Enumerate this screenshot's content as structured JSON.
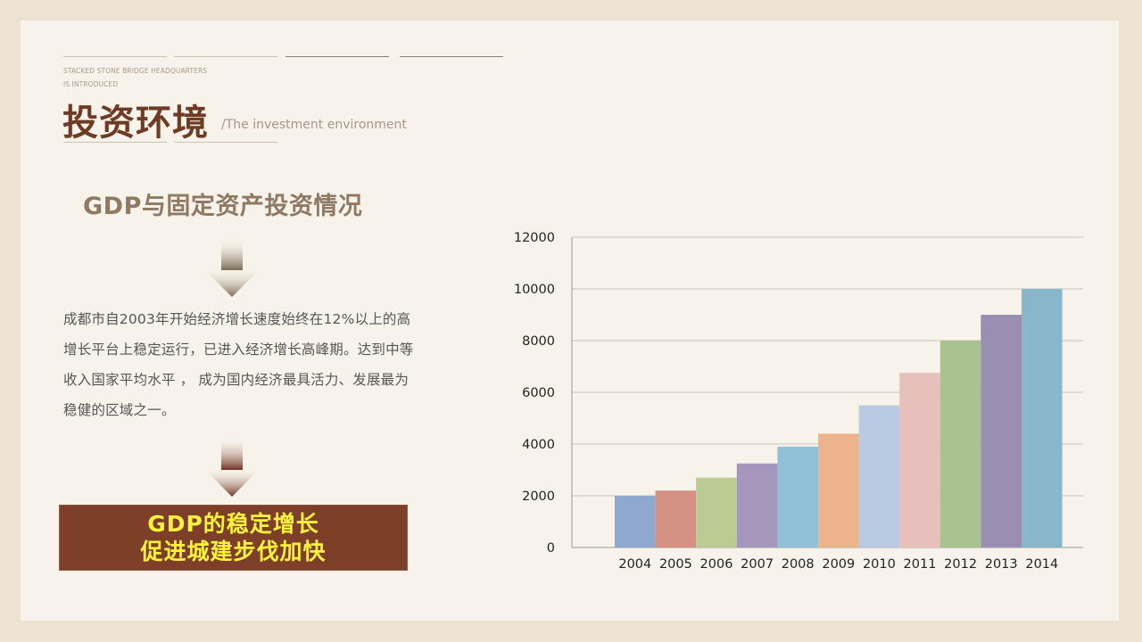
{
  "header": {
    "subtitle_en_line1": "STACKED STONE BRIDGE HEADQUARTERS",
    "subtitle_en_line2": "IS INTRODUCED",
    "title_cn": "投资环境",
    "title_en": "/The investment environment"
  },
  "section": {
    "heading": "GDP与固定资产投资情况",
    "paragraph": "成都市自2003年开始经济增长速度始终在12%以上的高增长平台上稳定运行，已进入经济增长高峰期。达到中等收入国家平均水平 ， 成为国内经济最具活力、发展最为稳健的区域之一。",
    "highlight_line1": "GDP的稳定增长",
    "highlight_line2": "促进城建步伐加快"
  },
  "colors": {
    "title": "#6e3b24",
    "highlight_bg": "#7e3f29",
    "highlight_text": "#fff23a"
  },
  "chart_data": {
    "type": "bar",
    "categories": [
      "2004",
      "2005",
      "2006",
      "2007",
      "2008",
      "2009",
      "2010",
      "2011",
      "2012",
      "2013",
      "2014"
    ],
    "values": [
      2000,
      2200,
      2700,
      3250,
      3900,
      4400,
      5500,
      6750,
      8000,
      9000,
      10000
    ],
    "colors": [
      "#8fa8cf",
      "#d49184",
      "#bacb94",
      "#a596be",
      "#8fc0d6",
      "#ebb48a",
      "#b8cbe2",
      "#e7bfbb",
      "#a9c290",
      "#9b8eb3",
      "#88b6cb"
    ],
    "ylim": [
      0,
      12000
    ],
    "yticks": [
      0,
      2000,
      4000,
      6000,
      8000,
      10000,
      12000
    ],
    "grid": true,
    "title": "",
    "xlabel": "",
    "ylabel": ""
  }
}
